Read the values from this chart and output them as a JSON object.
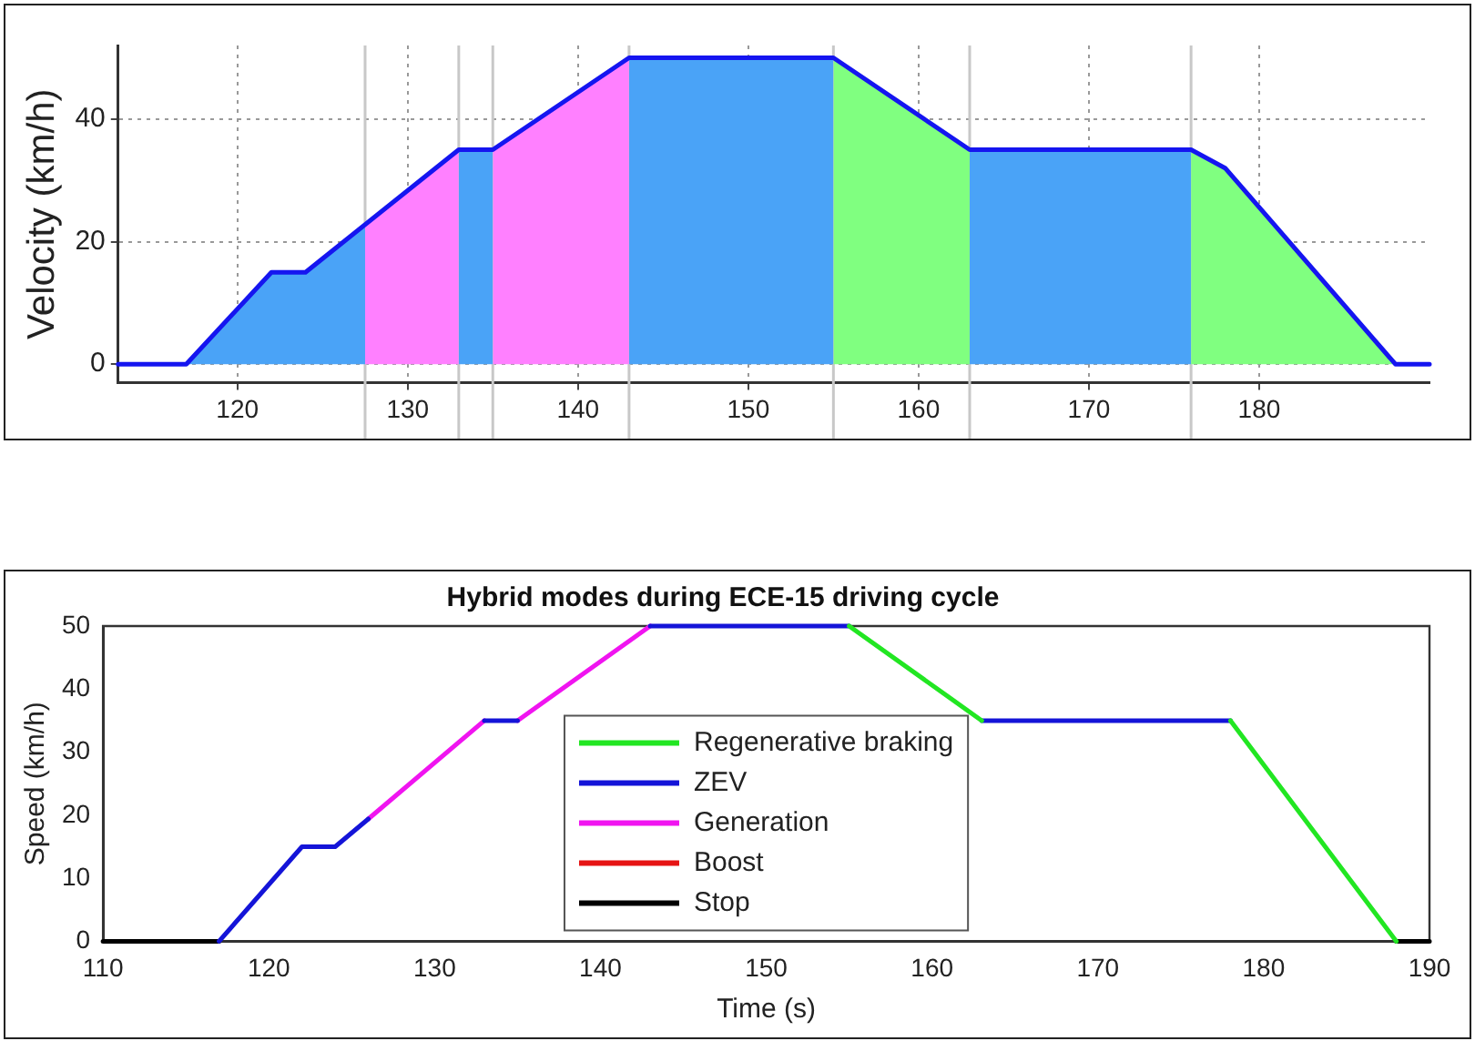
{
  "chart_data": [
    {
      "type": "area",
      "ylabel": "Velocity (km/h)",
      "xlim": [
        113,
        190
      ],
      "xticks": [
        120,
        130,
        140,
        150,
        160,
        170,
        180
      ],
      "ylim": [
        -3,
        52
      ],
      "yticks": [
        0,
        20,
        40
      ],
      "grid": true,
      "legend": false,
      "marker": "none",
      "line_style": "solid",
      "ref_lines": [
        {
          "axis": "x",
          "value": 127.5,
          "color": "#c8c8c8"
        },
        {
          "axis": "x",
          "value": 133,
          "color": "#c8c8c8"
        },
        {
          "axis": "x",
          "value": 135,
          "color": "#c8c8c8"
        },
        {
          "axis": "x",
          "value": 143,
          "color": "#c8c8c8"
        },
        {
          "axis": "x",
          "value": 155,
          "color": "#c8c8c8"
        },
        {
          "axis": "x",
          "value": 163,
          "color": "#c8c8c8"
        },
        {
          "axis": "x",
          "value": 176,
          "color": "#c8c8c8"
        }
      ],
      "series": [
        {
          "color": "#4aa3f7",
          "x": [
            117,
            122,
            124,
            127.5,
            130,
            133,
            135,
            139,
            143,
            155,
            159,
            163,
            176
          ],
          "values": [
            0,
            15,
            15,
            22.8,
            null,
            35,
            35,
            null,
            50,
            50,
            null,
            35,
            35
          ]
        },
        {
          "color": "#ff80ff",
          "x": [
            127.5,
            133,
            134,
            135,
            143
          ],
          "values": [
            22.8,
            35,
            null,
            35,
            50
          ]
        },
        {
          "color": "#80ff80",
          "x": [
            155,
            163,
            170,
            176,
            178,
            188
          ],
          "values": [
            50,
            35,
            null,
            35,
            32,
            0
          ]
        },
        {
          "type": "line",
          "color": "#1515f0",
          "x": [
            113,
            117,
            122,
            124,
            133,
            135,
            143,
            155,
            163,
            176,
            178,
            188,
            190
          ],
          "values": [
            0,
            0,
            15,
            15,
            35,
            35,
            50,
            50,
            35,
            35,
            32,
            0,
            0
          ]
        }
      ]
    },
    {
      "type": "line",
      "title": "Hybrid modes during ECE-15 driving cycle",
      "xlabel": "Time (s)",
      "ylabel": "Speed (km/h)",
      "xlim": [
        110,
        190
      ],
      "xticks": [
        110,
        120,
        130,
        140,
        150,
        160,
        170,
        180,
        190
      ],
      "ylim": [
        0,
        50
      ],
      "yticks": [
        0,
        10,
        20,
        30,
        40,
        50
      ],
      "legend": "bottom",
      "marker": "none",
      "line_style": "solid",
      "series": [
        {
          "name": "Regenerative braking",
          "color": "#22e622",
          "x": [
            155,
            163,
            170,
            178,
            188
          ],
          "values": [
            50,
            35,
            null,
            35,
            0
          ]
        },
        {
          "name": "ZEV",
          "color": "#1414d8",
          "x": [
            117,
            122,
            124,
            126,
            130,
            133,
            135,
            139,
            143,
            155,
            159,
            163,
            178
          ],
          "values": [
            0,
            15,
            15,
            19.4,
            null,
            35,
            35,
            null,
            50,
            50,
            null,
            35,
            35
          ]
        },
        {
          "name": "Generation",
          "color": "#f014f0",
          "x": [
            126,
            133,
            134,
            135,
            143
          ],
          "values": [
            19.4,
            35,
            null,
            35,
            50
          ]
        },
        {
          "name": "Boost",
          "color": "#e61414"
        },
        {
          "name": "Stop",
          "color": "#000000",
          "x": [
            110,
            117,
            150,
            188,
            190
          ],
          "values": [
            0,
            0,
            null,
            0,
            0
          ]
        }
      ]
    }
  ]
}
